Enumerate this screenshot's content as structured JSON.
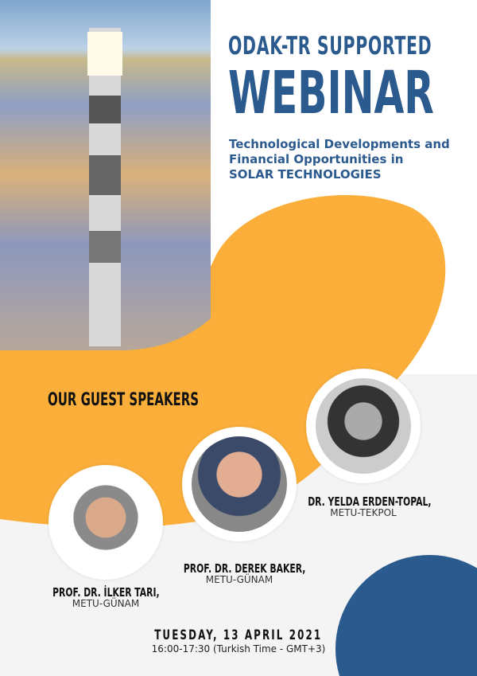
{
  "header": {
    "line1": "ODAK-TR SUPPORTED",
    "line2": "WEBINAR",
    "subtitle_lines": [
      "Technological Developments and",
      "Financial Opportunities in",
      "SOLAR TECHNOLOGIES"
    ]
  },
  "section_title": "OUR GUEST SPEAKERS",
  "speakers": [
    {
      "name": "PROF. DR. İLKER TARI,",
      "affiliation": "METU-GÜNAM"
    },
    {
      "name": "PROF. DR. DEREK BAKER,",
      "affiliation": "METU-GÜNAM"
    },
    {
      "name": "DR. YELDA ERDEN-TOPAL,",
      "affiliation": "METU-TEKPOL"
    }
  ],
  "event": {
    "date": "TUESDAY, 13 APRIL 2021",
    "time": "16:00-17:30 (Turkish Time - GMT+3)"
  },
  "colors": {
    "blue": "#2b5a8e",
    "orange": "#fbaf3a",
    "gray": "#f4f4f4"
  }
}
